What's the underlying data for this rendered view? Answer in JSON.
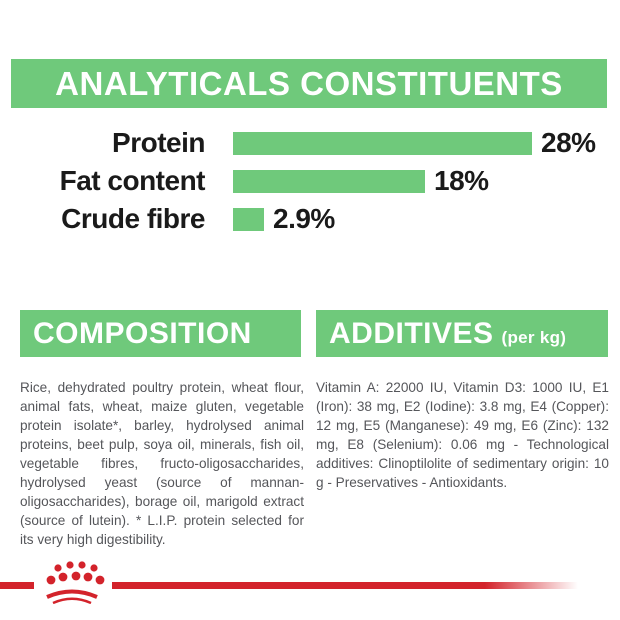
{
  "colors": {
    "accent_green": "#6fc97b",
    "brand_red": "#d3232b",
    "heading_text": "#ffffff",
    "chart_label_text": "#1a1a1a",
    "body_text": "#55565a"
  },
  "banner": {
    "title": "ANALYTICALS CONSTITUENTS"
  },
  "chart_data": {
    "type": "bar",
    "orientation": "horizontal",
    "title": "ANALYTICALS CONSTITUENTS",
    "categories": [
      "Protein",
      "Fat content",
      "Crude fibre"
    ],
    "values": [
      28,
      18,
      2.9
    ],
    "value_labels": [
      "28%",
      "18%",
      "2.9%"
    ],
    "unit": "%",
    "xlim": [
      0,
      28
    ],
    "bar_color": "#6fc97b",
    "grid": false,
    "legend": false,
    "axes_shown": false
  },
  "composition": {
    "title": "COMPOSITION",
    "body": "Rice, dehydrated poultry protein, wheat flour, animal fats, wheat, maize gluten, vegetable protein isolate*, barley, hydrolysed animal proteins, beet pulp, soya oil, minerals, fish oil, vegetable fibres, fructo-oligosaccharides, hydrolysed yeast (source of mannan-oligosaccharides), borage oil, marigold extract (source of lutein). * L.I.P. protein selected for its very high digestibility."
  },
  "additives": {
    "title": "ADDITIVES",
    "title_suffix": "(per kg)",
    "body": "Vitamin A: 22000 IU, Vitamin D3: 1000 IU, E1 (Iron): 38 mg, E2 (Iodine): 3.8 mg, E4 (Copper): 12 mg, E5 (Manganese): 49 mg, E6 (Zinc): 132 mg, E8 (Selenium): 0.06 mg - Technological additives: Clinoptilolite of sedimentary origin: 10 g - Preservatives - Antioxidants."
  },
  "footer": {
    "brand_logo": "royal-canin-crown"
  }
}
